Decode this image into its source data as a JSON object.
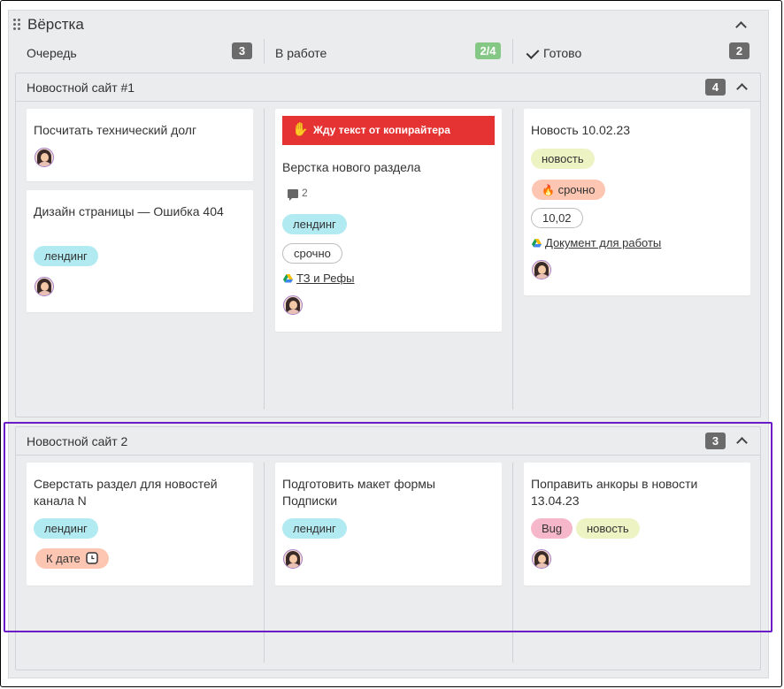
{
  "board": {
    "title": "Вёрстка",
    "columns": [
      {
        "label": "Очередь",
        "count": "3"
      },
      {
        "label": "В работе",
        "count": "2/4"
      },
      {
        "label": "Готово",
        "count": "2"
      }
    ]
  },
  "lanes": [
    {
      "title": "Новостной сайт #1",
      "count": "4",
      "cards": {
        "queue": [
          {
            "title": "Посчитать технический долг"
          },
          {
            "title": "Дизайн страницы — Ошибка 404",
            "tags": [
              "лендинг"
            ]
          }
        ],
        "progress": [
          {
            "banner": "Жду текст от копирайтера",
            "banner_icon": "✋",
            "title": "Верстка нового раздела",
            "comments": "2",
            "tags": [
              "лендинг",
              "срочно"
            ],
            "link": "ТЗ и Рефы"
          }
        ],
        "done": [
          {
            "title": "Новость 10.02.23",
            "tags": [
              "новость",
              "срочно",
              "10,02"
            ],
            "urgent_icon": "🔥",
            "link": "Документ для работы"
          }
        ]
      }
    },
    {
      "title": "Новостной сайт 2",
      "count": "3",
      "cards": {
        "queue": [
          {
            "title": "Сверстать раздел для новостей канала N",
            "tags": [
              "лендинг",
              "К дате"
            ]
          }
        ],
        "progress": [
          {
            "title": "Подготовить макет формы Подписки",
            "tags": [
              "лендинг"
            ]
          }
        ],
        "done": [
          {
            "title": "Поправить анкоры в новости 13.04.23",
            "tags": [
              "Bug",
              "новость"
            ]
          }
        ]
      }
    }
  ],
  "colors": {
    "accent_selection": "#6a1bc6",
    "banner_red": "#e53232",
    "count_green": "#85c785",
    "tag_cyan": "#b2eaf2"
  }
}
